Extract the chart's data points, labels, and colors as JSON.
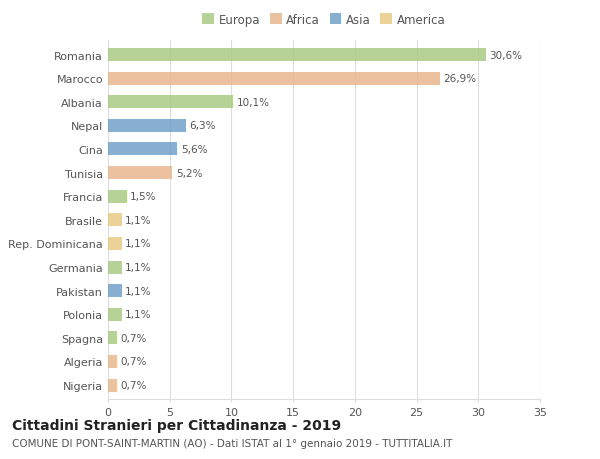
{
  "categories": [
    "Romania",
    "Marocco",
    "Albania",
    "Nepal",
    "Cina",
    "Tunisia",
    "Francia",
    "Brasile",
    "Rep. Dominicana",
    "Germania",
    "Pakistan",
    "Polonia",
    "Spagna",
    "Algeria",
    "Nigeria"
  ],
  "values": [
    30.6,
    26.9,
    10.1,
    6.3,
    5.6,
    5.2,
    1.5,
    1.1,
    1.1,
    1.1,
    1.1,
    1.1,
    0.7,
    0.7,
    0.7
  ],
  "labels": [
    "30,6%",
    "26,9%",
    "10,1%",
    "6,3%",
    "5,6%",
    "5,2%",
    "1,5%",
    "1,1%",
    "1,1%",
    "1,1%",
    "1,1%",
    "1,1%",
    "0,7%",
    "0,7%",
    "0,7%"
  ],
  "colors": [
    "#a8c97f",
    "#e8b48a",
    "#a8c97f",
    "#6b9ec7",
    "#6b9ec7",
    "#e8b48a",
    "#a8c97f",
    "#e8c97f",
    "#e8c97f",
    "#a8c97f",
    "#6b9ec7",
    "#a8c97f",
    "#a8c97f",
    "#e8b48a",
    "#e8b48a"
  ],
  "legend_labels": [
    "Europa",
    "Africa",
    "Asia",
    "America"
  ],
  "legend_colors": [
    "#a8c97f",
    "#e8b48a",
    "#6b9ec7",
    "#e8c97f"
  ],
  "xlim": [
    0,
    35
  ],
  "xticks": [
    0,
    5,
    10,
    15,
    20,
    25,
    30,
    35
  ],
  "title": "Cittadini Stranieri per Cittadinanza - 2019",
  "subtitle": "COMUNE DI PONT-SAINT-MARTIN (AO) - Dati ISTAT al 1° gennaio 2019 - TUTTITALIA.IT",
  "bg_color": "#ffffff",
  "grid_color": "#dddddd",
  "bar_height": 0.55,
  "title_fontsize": 10,
  "subtitle_fontsize": 7.5,
  "tick_fontsize": 8,
  "label_fontsize": 7.5,
  "legend_fontsize": 8.5
}
